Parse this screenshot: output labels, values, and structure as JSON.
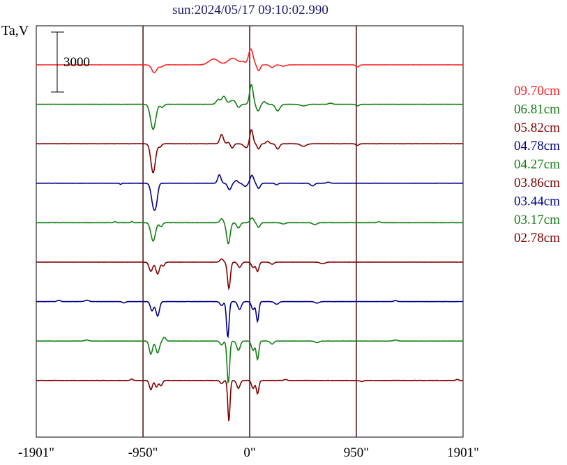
{
  "chart_data": {
    "type": "line",
    "title": "sun:2024/05/17 09:10:02.990",
    "ylabel": "Ta,V",
    "scale_bar_label": "3000",
    "x_tick_labels": [
      "-1901\"",
      "-950\"",
      "0\"",
      "950\"",
      "1901\""
    ],
    "x_ticks": [
      -1901,
      -950,
      0,
      950,
      1901
    ],
    "xlim": [
      -1901,
      1901
    ],
    "vertical_lines": [
      -950,
      0,
      950
    ],
    "grid": false,
    "legend_position": "right",
    "colors": {
      "title": "#1a1a6e",
      "axis": "#000000",
      "guide": "#4a0f0f",
      "red": "#ff2020",
      "green": "#128012",
      "maroon": "#800000",
      "navy": "#00008b"
    },
    "series": [
      {
        "name": "09.70cm",
        "color": "#ff2020",
        "base": 0,
        "noise": 0.002,
        "features": [
          {
            "x": -850,
            "w": 30,
            "a": -0.3
          },
          {
            "x": -790,
            "w": 25,
            "a": -0.08
          },
          {
            "x": -320,
            "w": 60,
            "a": 0.22
          },
          {
            "x": -150,
            "w": 60,
            "a": 0.25
          },
          {
            "x": -60,
            "w": 30,
            "a": 0.1
          },
          {
            "x": 10,
            "w": 28,
            "a": 0.6
          },
          {
            "x": 80,
            "w": 20,
            "a": -0.22
          },
          {
            "x": 200,
            "w": 25,
            "a": -0.1
          },
          {
            "x": 300,
            "w": 30,
            "a": -0.05
          },
          {
            "x": 960,
            "w": 20,
            "a": -0.08
          }
        ]
      },
      {
        "name": "06.81cm",
        "color": "#128012",
        "base": 0,
        "noise": 0.003,
        "features": [
          {
            "x": -860,
            "w": 32,
            "a": -0.95
          },
          {
            "x": -780,
            "w": 20,
            "a": -0.12
          },
          {
            "x": -280,
            "w": 25,
            "a": 0.18
          },
          {
            "x": -230,
            "w": 25,
            "a": 0.3
          },
          {
            "x": -150,
            "w": 40,
            "a": 0.15
          },
          {
            "x": -100,
            "w": 22,
            "a": -0.15
          },
          {
            "x": 15,
            "w": 22,
            "a": 0.75
          },
          {
            "x": 75,
            "w": 22,
            "a": -0.25
          },
          {
            "x": 130,
            "w": 22,
            "a": 0.1
          },
          {
            "x": 250,
            "w": 28,
            "a": -0.25
          },
          {
            "x": 480,
            "w": 40,
            "a": -0.06
          },
          {
            "x": 720,
            "w": 25,
            "a": 0.04
          },
          {
            "x": 960,
            "w": 20,
            "a": -0.06
          }
        ]
      },
      {
        "name": "05.82cm",
        "color": "#800000",
        "base": 0,
        "noise": 0.003,
        "features": [
          {
            "x": -860,
            "w": 28,
            "a": -1.1
          },
          {
            "x": -800,
            "w": 20,
            "a": -0.12
          },
          {
            "x": -250,
            "w": 22,
            "a": 0.35
          },
          {
            "x": -180,
            "w": 22,
            "a": 0.1
          },
          {
            "x": -160,
            "w": 22,
            "a": -0.2
          },
          {
            "x": -30,
            "w": 30,
            "a": -0.15
          },
          {
            "x": 15,
            "w": 20,
            "a": 0.55
          },
          {
            "x": 80,
            "w": 18,
            "a": -0.2
          },
          {
            "x": 160,
            "w": 20,
            "a": 0.1
          },
          {
            "x": 250,
            "w": 22,
            "a": -0.2
          },
          {
            "x": 480,
            "w": 35,
            "a": -0.1
          },
          {
            "x": 960,
            "w": 20,
            "a": -0.06
          }
        ]
      },
      {
        "name": "04.78cm",
        "color": "#00008b",
        "base": 0,
        "noise": 0.002,
        "features": [
          {
            "x": -1150,
            "w": 10,
            "a": -0.05
          },
          {
            "x": -855,
            "w": 28,
            "a": -0.9
          },
          {
            "x": -830,
            "w": 20,
            "a": -0.4
          },
          {
            "x": -270,
            "w": 20,
            "a": 0.32
          },
          {
            "x": -180,
            "w": 22,
            "a": -0.25
          },
          {
            "x": -120,
            "w": 22,
            "a": 0.1
          },
          {
            "x": -40,
            "w": 25,
            "a": -0.12
          },
          {
            "x": 20,
            "w": 22,
            "a": 0.3
          },
          {
            "x": 80,
            "w": 20,
            "a": -0.2
          },
          {
            "x": 240,
            "w": 18,
            "a": -0.06
          },
          {
            "x": 560,
            "w": 25,
            "a": -0.1
          },
          {
            "x": 700,
            "w": 20,
            "a": 0.04
          }
        ]
      },
      {
        "name": "04.27cm",
        "color": "#128012",
        "base": 0,
        "noise": 0.003,
        "features": [
          {
            "x": -1200,
            "w": 10,
            "a": 0.05
          },
          {
            "x": -1050,
            "w": 10,
            "a": 0.05
          },
          {
            "x": -860,
            "w": 28,
            "a": -0.7
          },
          {
            "x": -790,
            "w": 20,
            "a": -0.15
          },
          {
            "x": -250,
            "w": 20,
            "a": 0.15
          },
          {
            "x": -190,
            "w": 22,
            "a": -0.8
          },
          {
            "x": -100,
            "w": 22,
            "a": -0.2
          },
          {
            "x": 20,
            "w": 22,
            "a": 0.18
          },
          {
            "x": 80,
            "w": 20,
            "a": -0.18
          },
          {
            "x": 300,
            "w": 25,
            "a": -0.05
          },
          {
            "x": 580,
            "w": 25,
            "a": -0.08
          },
          {
            "x": 1150,
            "w": 15,
            "a": 0.04
          }
        ]
      },
      {
        "name": "03.86cm",
        "color": "#800000",
        "base": 0,
        "noise": 0.003,
        "features": [
          {
            "x": -880,
            "w": 22,
            "a": -0.35
          },
          {
            "x": -820,
            "w": 22,
            "a": -0.45
          },
          {
            "x": -770,
            "w": 18,
            "a": -0.15
          },
          {
            "x": -250,
            "w": 20,
            "a": 0.12
          },
          {
            "x": -185,
            "w": 18,
            "a": -1.0
          },
          {
            "x": -90,
            "w": 22,
            "a": -0.2
          },
          {
            "x": 30,
            "w": 20,
            "a": -0.2
          },
          {
            "x": 70,
            "w": 18,
            "a": -0.35
          },
          {
            "x": 200,
            "w": 22,
            "a": -0.08
          },
          {
            "x": 650,
            "w": 30,
            "a": -0.06
          }
        ]
      },
      {
        "name": "03.44cm",
        "color": "#00008b",
        "base": 0,
        "noise": 0.004,
        "features": [
          {
            "x": -1700,
            "w": 20,
            "a": 0.05
          },
          {
            "x": -1450,
            "w": 25,
            "a": 0.05
          },
          {
            "x": -1120,
            "w": 20,
            "a": -0.05
          },
          {
            "x": -870,
            "w": 20,
            "a": -0.35
          },
          {
            "x": -820,
            "w": 22,
            "a": -0.55
          },
          {
            "x": -250,
            "w": 20,
            "a": -0.15
          },
          {
            "x": -195,
            "w": 16,
            "a": -1.35
          },
          {
            "x": -90,
            "w": 22,
            "a": -0.3
          },
          {
            "x": 30,
            "w": 20,
            "a": -0.3
          },
          {
            "x": 70,
            "w": 16,
            "a": -0.75
          },
          {
            "x": 240,
            "w": 25,
            "a": -0.1
          },
          {
            "x": 600,
            "w": 25,
            "a": -0.06
          },
          {
            "x": 1300,
            "w": 20,
            "a": 0.04
          }
        ]
      },
      {
        "name": "03.17cm",
        "color": "#128012",
        "base": 0,
        "noise": 0.004,
        "features": [
          {
            "x": -1450,
            "w": 25,
            "a": 0.04
          },
          {
            "x": -880,
            "w": 20,
            "a": -0.5
          },
          {
            "x": -820,
            "w": 22,
            "a": -0.45
          },
          {
            "x": -760,
            "w": 18,
            "a": 0.15
          },
          {
            "x": -250,
            "w": 20,
            "a": -0.15
          },
          {
            "x": -190,
            "w": 16,
            "a": -1.6
          },
          {
            "x": -100,
            "w": 22,
            "a": -0.35
          },
          {
            "x": 30,
            "w": 20,
            "a": -0.35
          },
          {
            "x": 70,
            "w": 16,
            "a": -0.7
          },
          {
            "x": 200,
            "w": 20,
            "a": -0.12
          },
          {
            "x": 600,
            "w": 25,
            "a": -0.06
          },
          {
            "x": 1300,
            "w": 25,
            "a": 0.04
          }
        ]
      },
      {
        "name": "02.78cm",
        "color": "#800000",
        "base": 0,
        "noise": 0.005,
        "features": [
          {
            "x": -1050,
            "w": 15,
            "a": 0.06
          },
          {
            "x": -880,
            "w": 18,
            "a": -0.35
          },
          {
            "x": -830,
            "w": 18,
            "a": -0.25
          },
          {
            "x": -790,
            "w": 18,
            "a": -0.2
          },
          {
            "x": -250,
            "w": 18,
            "a": -0.12
          },
          {
            "x": -185,
            "w": 14,
            "a": -1.55
          },
          {
            "x": -100,
            "w": 20,
            "a": -0.3
          },
          {
            "x": 30,
            "w": 18,
            "a": -0.3
          },
          {
            "x": 70,
            "w": 16,
            "a": -0.5
          },
          {
            "x": 320,
            "w": 20,
            "a": 0.04
          },
          {
            "x": 1000,
            "w": 20,
            "a": -0.04
          },
          {
            "x": 1850,
            "w": 15,
            "a": 0.05
          }
        ]
      }
    ]
  }
}
